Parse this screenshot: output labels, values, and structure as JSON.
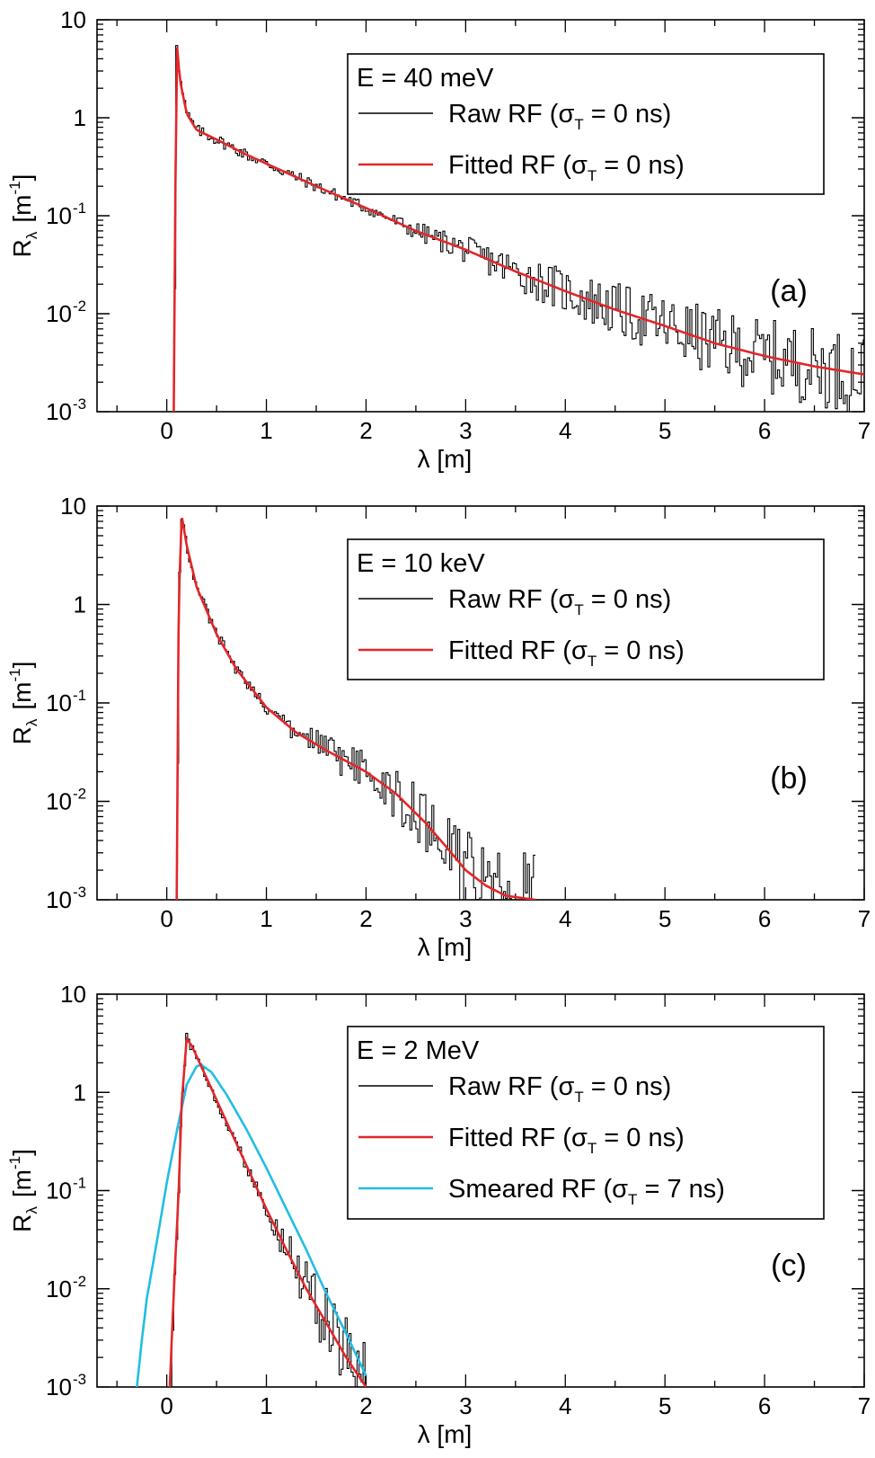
{
  "chart_data": [
    {
      "type": "line",
      "panel_label": "(a)",
      "xlabel": "λ  [m]",
      "ylabel": "R",
      "ylabel_subscript": "λ",
      "ylabel_unit": "[m",
      "ylabel_unit_sup": "-1",
      "ylabel_unit_close": "]",
      "xlim": [
        -0.7,
        7
      ],
      "ylim": [
        0.001,
        10
      ],
      "yscale": "log",
      "xticks": [
        0,
        1,
        2,
        3,
        4,
        5,
        6,
        7
      ],
      "xtick_labels": [
        "0",
        "1",
        "2",
        "3",
        "4",
        "5",
        "6",
        "7"
      ],
      "ytick_labels": [
        {
          "base": "10",
          "exp": "-3"
        },
        {
          "base": "10",
          "exp": "-2"
        },
        {
          "base": "10",
          "exp": "-1"
        },
        {
          "base": "1",
          "exp": ""
        },
        {
          "base": "10",
          "exp": ""
        }
      ],
      "legend_position": "top-right",
      "legend_title": "E = 40 meV",
      "legend_entries": [
        {
          "pre": "Raw RF (σ",
          "sub": "T",
          "post": " = 0 ns)"
        },
        {
          "pre": "Fitted RF (σ",
          "sub": "T",
          "post": " = 0 ns)"
        }
      ],
      "series": [
        {
          "name": "Raw RF (σT = 0 ns)",
          "color": "#000000",
          "style": "step-noisy",
          "x": [
            0.07,
            0.09,
            0.1,
            0.13,
            0.2,
            0.3,
            0.5,
            0.8,
            1.0,
            1.5,
            2.0,
            2.5,
            3.0,
            3.5,
            4.0,
            4.5,
            5.0,
            5.5,
            6.0,
            6.5,
            7.0
          ],
          "y": [
            0.001,
            0.5,
            6.0,
            2.5,
            1.1,
            0.75,
            0.6,
            0.42,
            0.34,
            0.2,
            0.12,
            0.07,
            0.045,
            0.027,
            0.017,
            0.011,
            0.0075,
            0.005,
            0.0037,
            0.0029,
            0.0024
          ]
        },
        {
          "name": "Fitted RF (σT = 0 ns)",
          "color": "#e3262b",
          "style": "smooth",
          "x": [
            0.07,
            0.09,
            0.1,
            0.13,
            0.2,
            0.3,
            0.5,
            0.8,
            1.0,
            1.5,
            2.0,
            2.5,
            3.0,
            3.5,
            4.0,
            4.5,
            5.0,
            5.5,
            6.0,
            6.5,
            7.0
          ],
          "y": [
            0.001,
            0.5,
            6.0,
            2.5,
            1.1,
            0.75,
            0.6,
            0.42,
            0.34,
            0.2,
            0.12,
            0.07,
            0.045,
            0.027,
            0.017,
            0.011,
            0.0075,
            0.005,
            0.0037,
            0.0029,
            0.0024
          ]
        }
      ]
    },
    {
      "type": "line",
      "panel_label": "(b)",
      "xlabel": "λ  [m]",
      "ylabel": "R",
      "ylabel_subscript": "λ",
      "ylabel_unit": "[m",
      "ylabel_unit_sup": "-1",
      "ylabel_unit_close": "]",
      "xlim": [
        -0.7,
        7
      ],
      "ylim": [
        0.001,
        10
      ],
      "yscale": "log",
      "xticks": [
        0,
        1,
        2,
        3,
        4,
        5,
        6,
        7
      ],
      "xtick_labels": [
        "0",
        "1",
        "2",
        "3",
        "4",
        "5",
        "6",
        "7"
      ],
      "ytick_labels": [
        {
          "base": "10",
          "exp": "-3"
        },
        {
          "base": "10",
          "exp": "-2"
        },
        {
          "base": "10",
          "exp": "-1"
        },
        {
          "base": "1",
          "exp": ""
        },
        {
          "base": "10",
          "exp": ""
        }
      ],
      "legend_position": "top-right",
      "legend_title": "E = 10 keV",
      "legend_entries": [
        {
          "pre": "Raw RF (σ",
          "sub": "T",
          "post": " = 0 ns)"
        },
        {
          "pre": "Fitted RF (σ",
          "sub": "T",
          "post": " = 0 ns)"
        }
      ],
      "series": [
        {
          "name": "Raw RF (σT = 0 ns)",
          "color": "#000000",
          "style": "step-noisy",
          "x": [
            0.1,
            0.12,
            0.15,
            0.2,
            0.3,
            0.5,
            0.7,
            1.0,
            1.3,
            1.6,
            2.0,
            2.3,
            2.6,
            2.8,
            3.0,
            3.2,
            3.4,
            3.7
          ],
          "y": [
            0.001,
            1.0,
            8.0,
            4.0,
            1.5,
            0.5,
            0.22,
            0.09,
            0.05,
            0.033,
            0.02,
            0.012,
            0.006,
            0.0035,
            0.002,
            0.0014,
            0.0011,
            0.001
          ]
        },
        {
          "name": "Fitted RF (σT = 0 ns)",
          "color": "#e3262b",
          "style": "smooth",
          "x": [
            0.1,
            0.12,
            0.15,
            0.2,
            0.3,
            0.5,
            0.7,
            1.0,
            1.3,
            1.6,
            2.0,
            2.3,
            2.6,
            2.8,
            3.0,
            3.2,
            3.4,
            3.7
          ],
          "y": [
            0.001,
            1.0,
            8.0,
            4.0,
            1.5,
            0.5,
            0.22,
            0.09,
            0.05,
            0.033,
            0.02,
            0.012,
            0.006,
            0.0035,
            0.002,
            0.0014,
            0.0011,
            0.001
          ]
        }
      ]
    },
    {
      "type": "line",
      "panel_label": "(c)",
      "xlabel": "λ  [m]",
      "ylabel": "R",
      "ylabel_subscript": "λ",
      "ylabel_unit": "[m",
      "ylabel_unit_sup": "-1",
      "ylabel_unit_close": "]",
      "xlim": [
        -0.7,
        7
      ],
      "ylim": [
        0.001,
        10
      ],
      "yscale": "log",
      "xticks": [
        0,
        1,
        2,
        3,
        4,
        5,
        6,
        7
      ],
      "xtick_labels": [
        "0",
        "1",
        "2",
        "3",
        "4",
        "5",
        "6",
        "7"
      ],
      "ytick_labels": [
        {
          "base": "10",
          "exp": "-3"
        },
        {
          "base": "10",
          "exp": "-2"
        },
        {
          "base": "10",
          "exp": "-1"
        },
        {
          "base": "1",
          "exp": ""
        },
        {
          "base": "10",
          "exp": ""
        }
      ],
      "legend_position": "top-right",
      "legend_title": "E = 2 MeV",
      "legend_entries": [
        {
          "pre": "Raw RF (σ",
          "sub": "T",
          "post": " = 0 ns)"
        },
        {
          "pre": "Fitted RF (σ",
          "sub": "T",
          "post": " = 0 ns)"
        },
        {
          "pre": "Smeared RF (σ",
          "sub": "T",
          "post": " = 7 ns)"
        }
      ],
      "series": [
        {
          "name": "Raw RF (σT = 0 ns)",
          "color": "#000000",
          "style": "step-noisy",
          "x": [
            0.03,
            0.05,
            0.08,
            0.12,
            0.15,
            0.2,
            0.25,
            0.4,
            0.6,
            0.8,
            1.0,
            1.2,
            1.4,
            1.6,
            1.8,
            2.0
          ],
          "y": [
            0.001,
            0.003,
            0.015,
            0.1,
            0.8,
            3.5,
            3.0,
            1.4,
            0.5,
            0.18,
            0.065,
            0.025,
            0.01,
            0.0045,
            0.002,
            0.001
          ]
        },
        {
          "name": "Fitted RF (σT = 0 ns)",
          "color": "#e3262b",
          "style": "smooth",
          "x": [
            0.03,
            0.05,
            0.08,
            0.12,
            0.15,
            0.2,
            0.25,
            0.4,
            0.6,
            0.8,
            1.0,
            1.2,
            1.4,
            1.6,
            1.8,
            2.0
          ],
          "y": [
            0.001,
            0.003,
            0.015,
            0.1,
            0.8,
            3.5,
            3.0,
            1.4,
            0.5,
            0.18,
            0.065,
            0.025,
            0.01,
            0.0045,
            0.002,
            0.001
          ]
        },
        {
          "name": "Smeared RF (σT = 7 ns)",
          "color": "#22bde3",
          "style": "smooth",
          "x": [
            -0.3,
            -0.25,
            -0.2,
            -0.1,
            0.0,
            0.1,
            0.2,
            0.3,
            0.35,
            0.45,
            0.6,
            0.8,
            1.0,
            1.2,
            1.4,
            1.6,
            1.8,
            2.0
          ],
          "y": [
            0.001,
            0.003,
            0.008,
            0.03,
            0.12,
            0.4,
            1.2,
            1.85,
            1.9,
            1.6,
            0.95,
            0.42,
            0.17,
            0.065,
            0.025,
            0.009,
            0.0035,
            0.0013
          ]
        }
      ]
    }
  ]
}
